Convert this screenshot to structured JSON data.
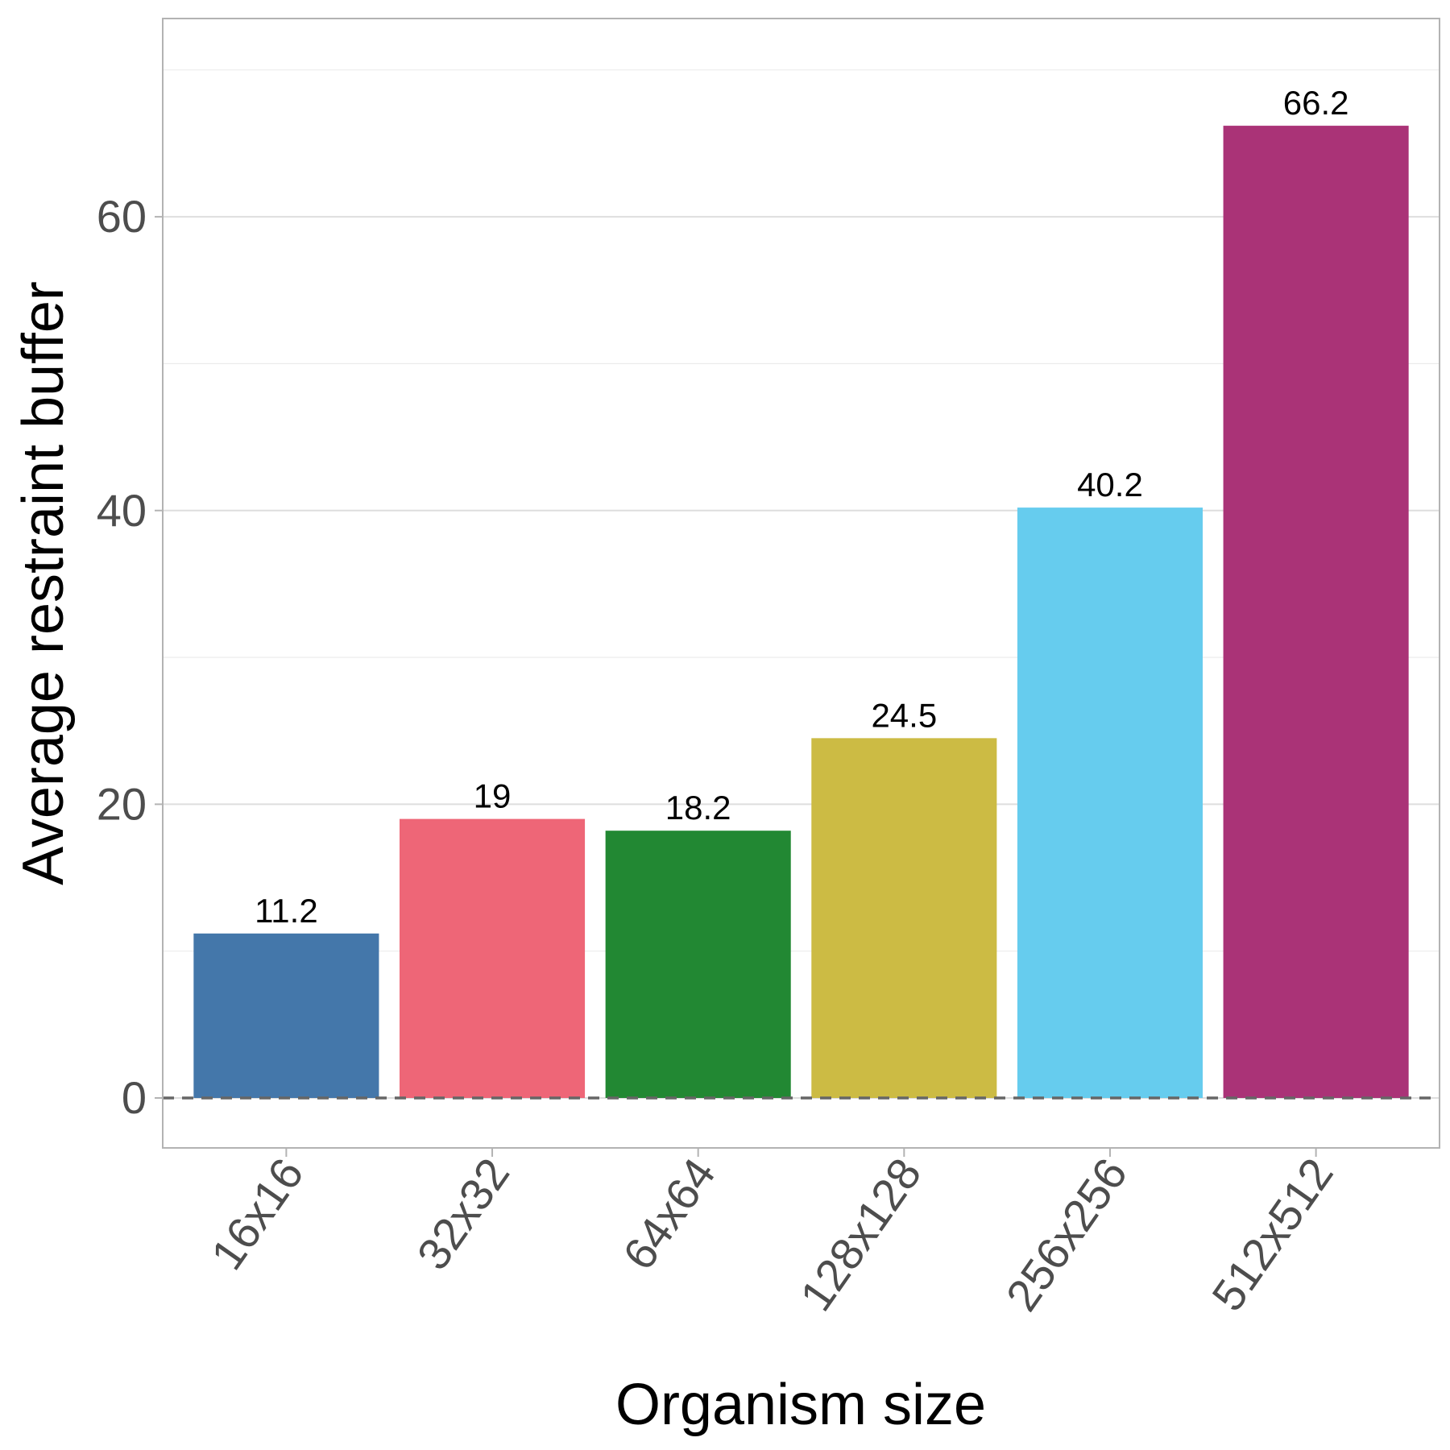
{
  "chart_data": {
    "type": "bar",
    "title": "",
    "xlabel": "Organism size",
    "ylabel": "Average restraint buffer",
    "categories": [
      "16x16",
      "32x32",
      "64x64",
      "128x128",
      "256x256",
      "512x512"
    ],
    "values": [
      11.2,
      19,
      18.2,
      24.5,
      40.2,
      66.2
    ],
    "value_labels": [
      "11.2",
      "19",
      "18.2",
      "24.5",
      "40.2",
      "66.2"
    ],
    "colors": [
      "#4477AA",
      "#EE6677",
      "#228833",
      "#CCBB44",
      "#66CCEE",
      "#AA3377"
    ],
    "yticks": [
      0,
      20,
      40,
      60
    ],
    "ylim": [
      -3.4,
      73.5
    ],
    "reference_line": {
      "y": 0,
      "style": "dashed",
      "color": "#666666"
    },
    "grid": true,
    "legend": "none"
  }
}
